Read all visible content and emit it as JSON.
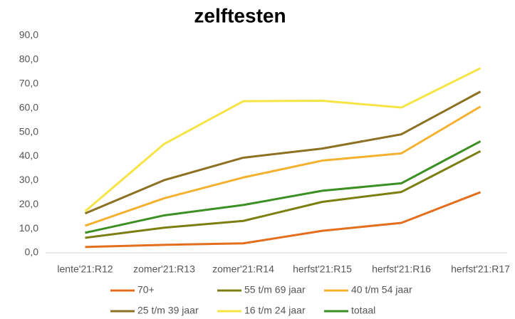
{
  "chart_data": {
    "type": "line",
    "title": "zelftesten",
    "categories": [
      "lente'21:R12",
      "zomer'21:R13",
      "zomer'21:R14",
      "herfst'21:R15",
      "herfst'21:R16",
      "herfst'21:R17"
    ],
    "series": [
      {
        "name": "70+",
        "color": "#e36f1e",
        "values": [
          2.4,
          3.3,
          3.9,
          9.1,
          12.4,
          25.1
        ]
      },
      {
        "name": "55 t/m 69 jaar",
        "color": "#7b7f12",
        "values": [
          6.2,
          10.4,
          13.2,
          21.1,
          25.2,
          42.1
        ]
      },
      {
        "name": "40 t/m 54 jaar",
        "color": "#f4b130",
        "values": [
          11.2,
          22.6,
          31.2,
          38.2,
          41.2,
          60.6
        ]
      },
      {
        "name": "25 t/m 39 jaar",
        "color": "#8c7122",
        "values": [
          16.3,
          30.1,
          39.4,
          43.2,
          49.1,
          66.8
        ]
      },
      {
        "name": "16 t/m 24 jaar",
        "color": "#f6e444",
        "values": [
          17.2,
          45.1,
          62.8,
          63.0,
          60.2,
          76.5
        ]
      },
      {
        "name": "totaal",
        "color": "#3c8f22",
        "values": [
          8.3,
          15.5,
          19.8,
          25.7,
          28.8,
          46.2
        ]
      }
    ],
    "ylim": [
      0,
      90
    ],
    "yticks": [
      {
        "value": 0,
        "label": "0,0"
      },
      {
        "value": 10,
        "label": "10,0"
      },
      {
        "value": 20,
        "label": "20,0"
      },
      {
        "value": 30,
        "label": "30,0"
      },
      {
        "value": 40,
        "label": "40,0"
      },
      {
        "value": 50,
        "label": "50,0"
      },
      {
        "value": 60,
        "label": "60,0"
      },
      {
        "value": 70,
        "label": "70,0"
      },
      {
        "value": 80,
        "label": "80,0"
      },
      {
        "value": 90,
        "label": "90,0"
      }
    ],
    "legend": "bottom"
  }
}
